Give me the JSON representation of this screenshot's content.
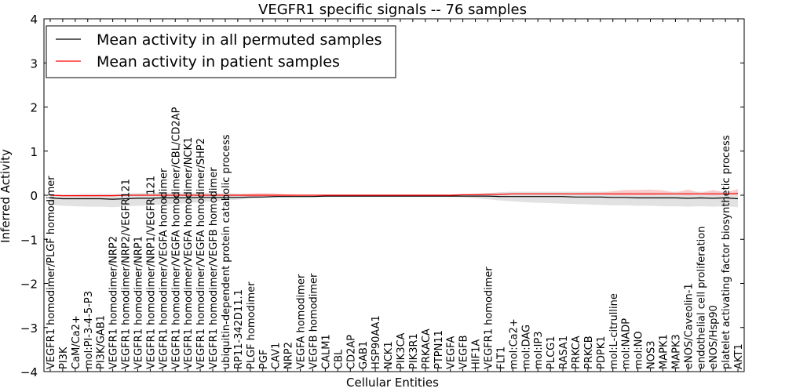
{
  "chart_data": {
    "type": "line",
    "title": "VEGFR1 specific signals -- 76 samples",
    "xlabel": "Cellular Entities",
    "ylabel": "Inferred Activity",
    "ylim": [
      -4,
      4
    ],
    "yticks": [
      "−4",
      "−3",
      "−2",
      "−1",
      "0",
      "1",
      "2",
      "3",
      "4"
    ],
    "legend_position": "top-left",
    "categories": [
      "VEGFR1 homodimer/PLGF homodimer",
      "PI3K",
      "CaM/Ca2+",
      "mol:PI-3-4-5-P3",
      "PI3K/GAB1",
      "VEGFR1 homodimer/NRP2",
      "VEGFR1 homodimer/NRP2/VEGFR121",
      "VEGFR1 homodimer/NRP1",
      "VEGFR1 homodimer/NRP1/VEGFR 121",
      "VEGFR1 homodimer/VEGFA homodimer",
      "VEGFR1 homodimer/VEGFA homodimer/CBL/CD2AP",
      "VEGFR1 homodimer/VEGFA homodimer/NCK1",
      "VEGFR1 homodimer/VEGFA homodimer/SHP2",
      "VEGFR1 homodimer/VEGFB homodimer",
      "ubiquitin-dependent protein catabolic process",
      "RP11-342D11.1",
      "PLGF homodimer",
      "PGF",
      "CAV1",
      "NRP2",
      "VEGFA homodimer",
      "VEGFB homodimer",
      "CALM1",
      "CBL",
      "CD2AP",
      "GAB1",
      "HSP90AA1",
      "NCK1",
      "PIK3CA",
      "PIK3R1",
      "PRKACA",
      "PTPN11",
      "VEGFA",
      "VEGFB",
      "HIF1A",
      "VEGFR1 homodimer",
      "FLT1",
      "mol:Ca2+",
      "mol:DAG",
      "mol:IP3",
      "PLCG1",
      "RASA1",
      "PRKCA",
      "PRKCB",
      "PDPK1",
      "mol:L-citrulline",
      "mol:NADP",
      "mol:NO",
      "NOS3",
      "MAPK1",
      "MAPK3",
      "eNOS/Caveolin-1",
      "endothelial cell proliferation",
      "eNOS/Hsp90",
      "platelet activating factor biosynthetic process",
      "AKT1"
    ],
    "series": [
      {
        "name": "Mean activity in all permuted samples",
        "color": "#000000",
        "band_color": "#dddddd",
        "values": [
          -0.06,
          -0.08,
          -0.08,
          -0.08,
          -0.08,
          -0.09,
          -0.08,
          -0.07,
          -0.07,
          -0.06,
          -0.06,
          -0.06,
          -0.05,
          -0.05,
          -0.05,
          -0.05,
          -0.04,
          -0.04,
          -0.03,
          -0.03,
          -0.03,
          -0.03,
          -0.02,
          -0.02,
          -0.02,
          -0.02,
          -0.02,
          -0.02,
          -0.02,
          -0.02,
          -0.02,
          -0.02,
          -0.02,
          -0.02,
          -0.02,
          -0.02,
          -0.03,
          -0.03,
          -0.03,
          -0.03,
          -0.03,
          -0.03,
          -0.04,
          -0.04,
          -0.04,
          -0.05,
          -0.05,
          -0.06,
          -0.06,
          -0.06,
          -0.06,
          -0.07,
          -0.06,
          -0.07,
          -0.06,
          -0.08
        ],
        "band_upper": [
          0.02,
          0.01,
          0.02,
          0.03,
          0.03,
          0.03,
          0.04,
          0.05,
          0.06,
          0.06,
          0.06,
          0.06,
          0.06,
          0.05,
          0.05,
          0.04,
          0.03,
          0.02,
          0.01,
          0.0,
          0.0,
          0.0,
          0.0,
          0.0,
          0.0,
          0.0,
          0.0,
          0.0,
          0.0,
          0.0,
          0.0,
          0.0,
          0.0,
          0.02,
          0.03,
          0.05,
          0.07,
          0.08,
          0.08,
          0.08,
          0.08,
          0.08,
          0.08,
          0.08,
          0.08,
          0.08,
          0.08,
          0.08,
          0.08,
          0.08,
          0.08,
          0.08,
          0.08,
          0.08,
          0.08,
          0.08
        ],
        "band_lower": [
          -0.22,
          -0.24,
          -0.25,
          -0.26,
          -0.26,
          -0.27,
          -0.25,
          -0.24,
          -0.23,
          -0.21,
          -0.2,
          -0.18,
          -0.16,
          -0.14,
          -0.12,
          -0.1,
          -0.08,
          -0.06,
          -0.05,
          -0.04,
          -0.04,
          -0.04,
          -0.04,
          -0.04,
          -0.04,
          -0.04,
          -0.04,
          -0.04,
          -0.04,
          -0.04,
          -0.04,
          -0.04,
          -0.04,
          -0.05,
          -0.07,
          -0.09,
          -0.12,
          -0.14,
          -0.16,
          -0.17,
          -0.18,
          -0.19,
          -0.2,
          -0.21,
          -0.22,
          -0.23,
          -0.23,
          -0.24,
          -0.24,
          -0.25,
          -0.25,
          -0.26,
          -0.25,
          -0.26,
          -0.25,
          -0.27
        ]
      },
      {
        "name": "Mean activity in patient samples",
        "color": "#ff0000",
        "band_color": "#f7bfbf",
        "values": [
          0.0,
          -0.01,
          -0.01,
          -0.01,
          -0.01,
          -0.01,
          0.0,
          0.0,
          0.0,
          0.0,
          0.0,
          0.0,
          0.0,
          0.0,
          0.0,
          0.0,
          0.0,
          0.0,
          0.0,
          0.0,
          0.0,
          0.0,
          0.0,
          0.0,
          0.0,
          0.0,
          0.0,
          0.0,
          0.0,
          0.0,
          0.0,
          0.0,
          0.0,
          0.01,
          0.01,
          0.02,
          0.02,
          0.03,
          0.03,
          0.03,
          0.03,
          0.03,
          0.03,
          0.03,
          0.03,
          0.03,
          0.03,
          0.03,
          0.03,
          0.03,
          0.03,
          0.03,
          0.03,
          0.03,
          0.03,
          0.04
        ],
        "band_upper": [
          0.01,
          0.01,
          0.01,
          0.01,
          0.01,
          0.01,
          0.01,
          0.01,
          0.01,
          0.01,
          0.01,
          0.01,
          0.01,
          0.01,
          0.01,
          0.01,
          0.04,
          0.05,
          0.04,
          0.02,
          0.01,
          0.01,
          0.01,
          0.01,
          0.01,
          0.01,
          0.01,
          0.01,
          0.01,
          0.01,
          0.01,
          0.01,
          0.01,
          0.01,
          0.02,
          0.03,
          0.04,
          0.05,
          0.05,
          0.05,
          0.05,
          0.05,
          0.05,
          0.06,
          0.06,
          0.09,
          0.12,
          0.12,
          0.13,
          0.11,
          0.06,
          0.13,
          0.05,
          0.12,
          0.06,
          0.14
        ],
        "band_lower": [
          -0.01,
          -0.02,
          -0.02,
          -0.02,
          -0.02,
          -0.02,
          -0.01,
          -0.01,
          -0.01,
          -0.01,
          -0.01,
          -0.01,
          -0.01,
          -0.01,
          -0.01,
          -0.01,
          -0.04,
          -0.05,
          -0.04,
          -0.02,
          -0.01,
          -0.01,
          -0.01,
          -0.01,
          -0.01,
          -0.01,
          -0.01,
          -0.01,
          -0.01,
          -0.01,
          -0.01,
          -0.01,
          -0.01,
          0.0,
          0.0,
          0.01,
          0.01,
          0.02,
          0.02,
          0.02,
          0.02,
          0.02,
          0.02,
          0.02,
          0.02,
          0.0,
          0.0,
          0.0,
          0.0,
          0.01,
          0.02,
          0.0,
          0.02,
          0.0,
          0.02,
          0.0
        ]
      }
    ]
  }
}
